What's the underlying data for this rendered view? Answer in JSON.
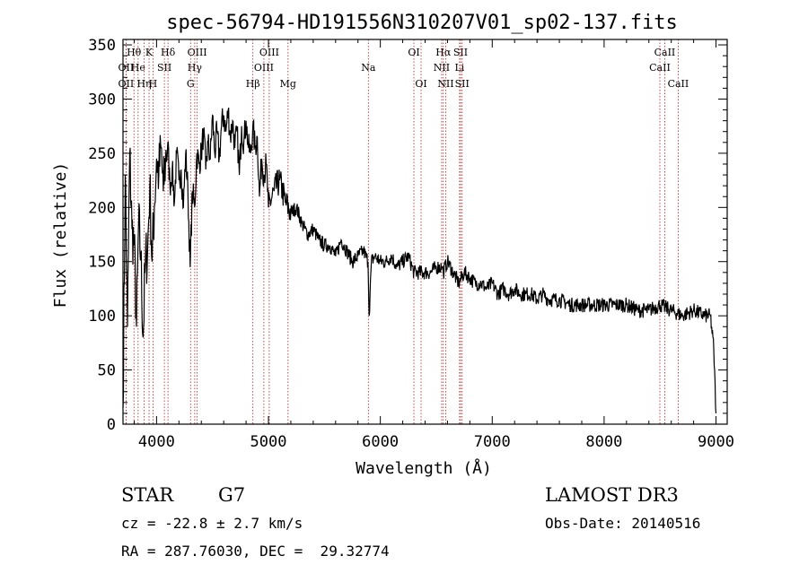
{
  "chart_data": {
    "type": "line",
    "title": "spec-56794-HD191556N310207V01_sp02-137.fits",
    "xlabel": "Wavelength (Å)",
    "ylabel": "Flux (relative)",
    "xlim": [
      3700,
      9100
    ],
    "ylim": [
      0,
      355
    ],
    "xticks": [
      4000,
      5000,
      6000,
      7000,
      8000,
      9000
    ],
    "yticks": [
      0,
      50,
      100,
      150,
      200,
      250,
      300,
      350
    ],
    "grid": false,
    "series": [
      {
        "name": "spectrum",
        "x": [
          3700,
          3720,
          3740,
          3760,
          3780,
          3800,
          3820,
          3840,
          3860,
          3880,
          3900,
          3920,
          3940,
          3960,
          3980,
          4000,
          4020,
          4040,
          4060,
          4080,
          4100,
          4120,
          4140,
          4160,
          4180,
          4200,
          4220,
          4240,
          4260,
          4280,
          4300,
          4320,
          4340,
          4360,
          4380,
          4400,
          4420,
          4440,
          4460,
          4480,
          4500,
          4520,
          4540,
          4560,
          4580,
          4600,
          4620,
          4640,
          4660,
          4680,
          4700,
          4720,
          4740,
          4760,
          4780,
          4800,
          4820,
          4840,
          4860,
          4880,
          4900,
          4920,
          4940,
          4960,
          4980,
          5000,
          5050,
          5100,
          5150,
          5200,
          5250,
          5300,
          5350,
          5400,
          5450,
          5500,
          5550,
          5600,
          5650,
          5700,
          5750,
          5800,
          5850,
          5890,
          5900,
          5920,
          5950,
          6000,
          6050,
          6100,
          6150,
          6200,
          6250,
          6300,
          6350,
          6400,
          6450,
          6500,
          6550,
          6563,
          6600,
          6650,
          6700,
          6750,
          6800,
          6850,
          6900,
          6950,
          7000,
          7050,
          7100,
          7150,
          7200,
          7250,
          7300,
          7350,
          7400,
          7450,
          7500,
          7600,
          7700,
          7800,
          7900,
          8000,
          8100,
          8200,
          8300,
          8400,
          8500,
          8600,
          8700,
          8800,
          8900,
          8950,
          8980,
          9000
        ],
        "values": [
          15,
          230,
          90,
          250,
          180,
          165,
          90,
          185,
          155,
          80,
          150,
          160,
          220,
          150,
          200,
          245,
          230,
          255,
          215,
          245,
          260,
          220,
          235,
          205,
          250,
          225,
          235,
          200,
          250,
          215,
          145,
          215,
          200,
          250,
          240,
          250,
          270,
          235,
          260,
          245,
          285,
          250,
          270,
          245,
          275,
          285,
          270,
          290,
          265,
          280,
          255,
          270,
          230,
          275,
          260,
          280,
          255,
          250,
          275,
          255,
          265,
          210,
          245,
          230,
          240,
          200,
          215,
          225,
          205,
          195,
          200,
          185,
          175,
          180,
          170,
          165,
          165,
          155,
          170,
          160,
          150,
          155,
          160,
          150,
          100,
          150,
          155,
          150,
          150,
          155,
          145,
          150,
          155,
          140,
          140,
          140,
          140,
          145,
          145,
          140,
          150,
          140,
          130,
          140,
          135,
          130,
          130,
          125,
          130,
          120,
          125,
          120,
          125,
          120,
          120,
          120,
          115,
          120,
          115,
          115,
          110,
          110,
          110,
          110,
          110,
          110,
          105,
          105,
          110,
          105,
          100,
          105,
          100,
          100,
          70,
          10
        ]
      }
    ],
    "line_markers": [
      {
        "label": "OII",
        "wl": 3727,
        "row": 2
      },
      {
        "label": "OII",
        "wl": 3727,
        "row": 3
      },
      {
        "label": "Hθ",
        "wl": 3798,
        "row": 1
      },
      {
        "label": "He",
        "wl": 3835,
        "row": 2
      },
      {
        "label": "Hη",
        "wl": 3889,
        "row": 3
      },
      {
        "label": "K",
        "wl": 3933,
        "row": 1
      },
      {
        "label": "SII",
        "wl": 4070,
        "row": 2
      },
      {
        "label": "H",
        "wl": 3968,
        "row": 3
      },
      {
        "label": "Hδ",
        "wl": 4102,
        "row": 1
      },
      {
        "label": "OIII",
        "wl": 4363,
        "row": 1
      },
      {
        "label": "Hγ",
        "wl": 4341,
        "row": 2
      },
      {
        "label": "G",
        "wl": 4304,
        "row": 3
      },
      {
        "label": "Hβ",
        "wl": 4861,
        "row": 3
      },
      {
        "label": "OIII",
        "wl": 5007,
        "row": 1
      },
      {
        "label": "OIII",
        "wl": 4959,
        "row": 2
      },
      {
        "label": "Mg",
        "wl": 5175,
        "row": 3
      },
      {
        "label": "Na",
        "wl": 5893,
        "row": 2
      },
      {
        "label": "OI",
        "wl": 6300,
        "row": 1
      },
      {
        "label": "OI",
        "wl": 6364,
        "row": 3
      },
      {
        "label": "Hα",
        "wl": 6563,
        "row": 1
      },
      {
        "label": "NII",
        "wl": 6548,
        "row": 2
      },
      {
        "label": "NII",
        "wl": 6584,
        "row": 3
      },
      {
        "label": "SII",
        "wl": 6717,
        "row": 1
      },
      {
        "label": "Li",
        "wl": 6708,
        "row": 2
      },
      {
        "label": "SII",
        "wl": 6731,
        "row": 3
      },
      {
        "label": "CaII",
        "wl": 8542,
        "row": 1
      },
      {
        "label": "CaII",
        "wl": 8498,
        "row": 2
      },
      {
        "label": "CaII",
        "wl": 8662,
        "row": 3
      }
    ]
  },
  "info": {
    "class": "STAR",
    "subclass": "G7",
    "survey": "LAMOST DR3",
    "cz": "cz = -22.8 ± 2.7 km/s",
    "obs_date": "Obs-Date: 20140516",
    "coords": "RA = 287.76030, DEC =  29.32774"
  }
}
